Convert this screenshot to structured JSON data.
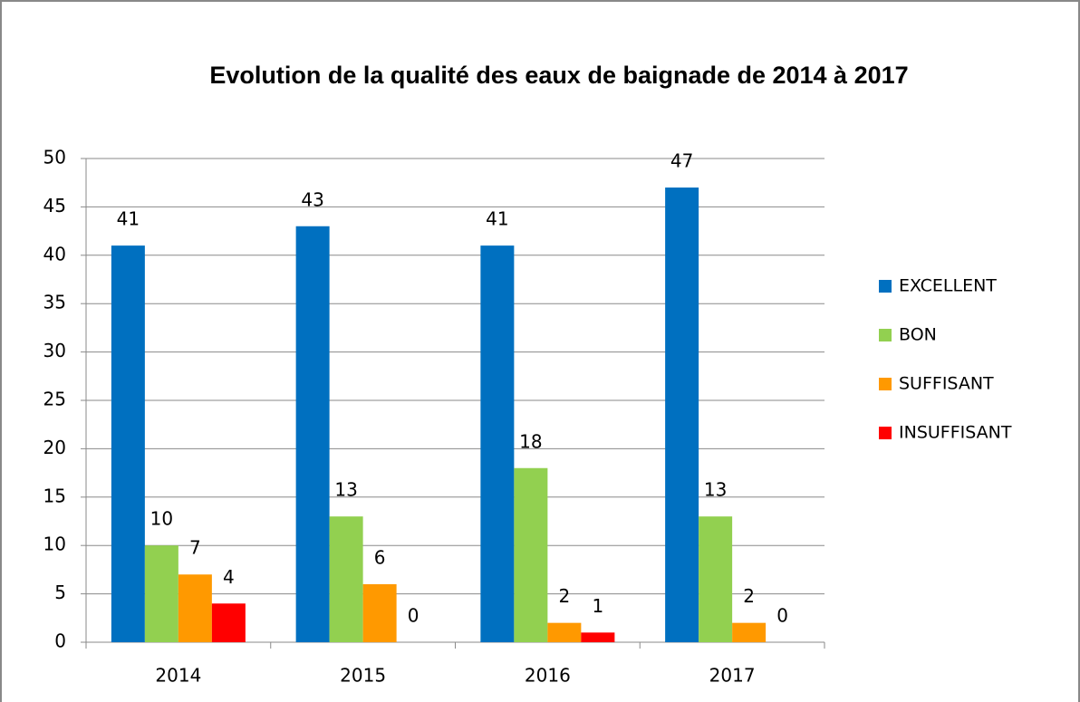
{
  "chart_data": {
    "type": "bar",
    "title": "Evolution de la qualité des eaux de baignade de 2014 à 2017",
    "categories": [
      "2014",
      "2015",
      "2016",
      "2017"
    ],
    "series": [
      {
        "name": "EXCELLENT",
        "color": "#0070c0",
        "values": [
          41,
          43,
          41,
          47
        ]
      },
      {
        "name": "BON",
        "color": "#92d050",
        "values": [
          10,
          13,
          18,
          13
        ]
      },
      {
        "name": "SUFFISANT",
        "color": "#ff9900",
        "values": [
          7,
          6,
          2,
          2
        ]
      },
      {
        "name": "INSUFFISANT",
        "color": "#ff0000",
        "values": [
          4,
          0,
          1,
          0
        ]
      }
    ],
    "ylim": [
      0,
      50
    ],
    "yticks": [
      0,
      5,
      10,
      15,
      20,
      25,
      30,
      35,
      40,
      45,
      50
    ],
    "grid": true,
    "legend": "right"
  }
}
